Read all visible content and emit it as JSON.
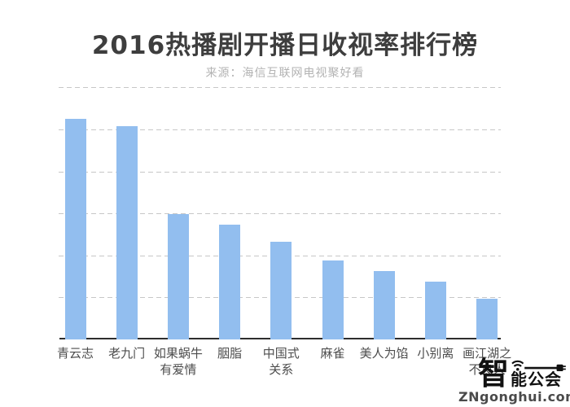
{
  "header": {
    "title": "2016热播剧开播日收视率排行榜",
    "source": "来源：海信互联网电视聚好看"
  },
  "chart_data": {
    "type": "bar",
    "title": "2016热播剧开播日收视率排行榜",
    "subtitle": "来源：海信互联网电视聚好看",
    "categories": [
      "青云志",
      "老九门",
      "如果蜗牛\n有爱情",
      "胭脂",
      "中国式\n关系",
      "麻雀",
      "美人为馅",
      "小别离",
      "画江湖之\n不良人"
    ],
    "values": [
      5.26,
      5.08,
      2.98,
      2.74,
      2.33,
      1.88,
      1.63,
      1.38,
      0.97
    ],
    "xlabel": "",
    "ylabel": "",
    "ylim": [
      0,
      6
    ],
    "grid": true,
    "grid_step": 1,
    "y_tick_labels_visible": false,
    "legend": false,
    "bar_color": "#92beef"
  },
  "watermark": {
    "icon_char": "智",
    "brand": "能公会",
    "url": "ZNgonghui.com"
  },
  "colors": {
    "title": "#3e3e3e",
    "subtitle": "#b3b3b3",
    "bar": "#92beef",
    "gridline": "#c7c7c7",
    "axis": "#2e2e2e",
    "axis_label": "#4d4d4d",
    "logo": "#111111"
  }
}
